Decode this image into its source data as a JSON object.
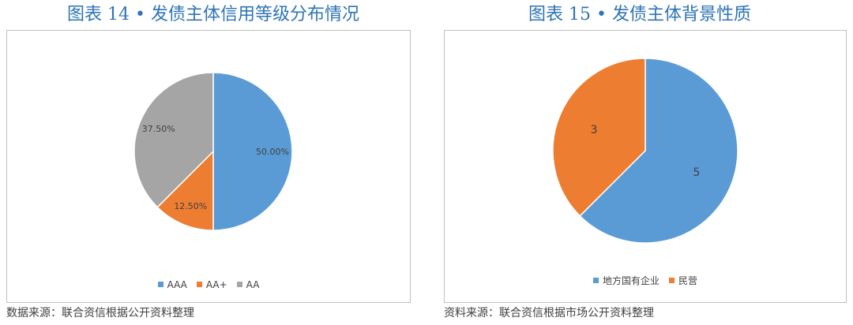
{
  "figures": [
    {
      "title": "图表 14 • 发债主体信用等级分布情况",
      "source": "数据来源：联合资信根据公开资料整理"
    },
    {
      "title": "图表 15 • 发债主体背景性质",
      "source": "资料来源：联合资信根据市场公开资料整理"
    }
  ],
  "chart_data": [
    {
      "type": "pie",
      "title": "",
      "categories": [
        "AAA",
        "AA+",
        "AA"
      ],
      "values": [
        50.0,
        12.5,
        37.5
      ],
      "labels": [
        "50.00%",
        "12.50%",
        "37.50%"
      ],
      "colors": [
        "#5b9bd5",
        "#ed7d31",
        "#a5a5a5"
      ],
      "legend_position": "bottom"
    },
    {
      "type": "pie",
      "title": "",
      "categories": [
        "地方国有企业",
        "民营"
      ],
      "values": [
        5,
        3
      ],
      "labels": [
        "5",
        "3"
      ],
      "colors": [
        "#5b9bd5",
        "#ed7d31"
      ],
      "legend_position": "bottom"
    }
  ]
}
